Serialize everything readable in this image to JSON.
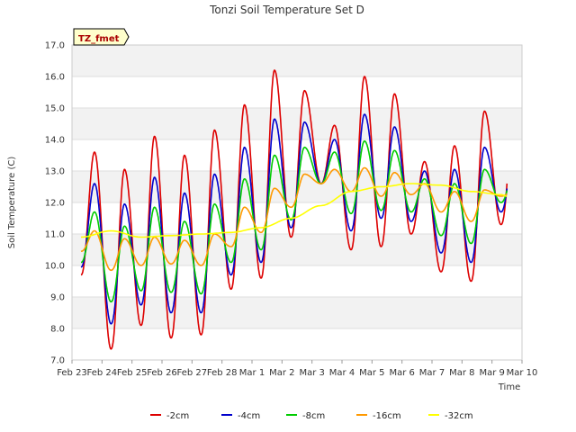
{
  "chart_data": {
    "type": "line",
    "title": "Tonzi Soil Temperature Set D",
    "xlabel": "Time",
    "ylabel": "Soil Temperature (C)",
    "site_label": "TZ_fmet",
    "ylim": [
      7.0,
      17.0
    ],
    "xlim": [
      0,
      15
    ],
    "y_ticks": [
      "7.0",
      "8.0",
      "9.0",
      "10.0",
      "11.0",
      "12.0",
      "13.0",
      "14.0",
      "15.0",
      "16.0",
      "17.0"
    ],
    "x_ticks": [
      "Feb 23",
      "Feb 24",
      "Feb 25",
      "Feb 26",
      "Feb 27",
      "Feb 28",
      "Mar 1",
      "Mar 2",
      "Mar 3",
      "Mar 4",
      "Mar 5",
      "Mar 6",
      "Mar 7",
      "Mar 8",
      "Mar 9",
      "Mar 10"
    ],
    "legend_position": "bottom",
    "grid": true,
    "series": [
      {
        "name": "-2cm",
        "color": "#dd0000",
        "daily_min": [
          9.7,
          7.35,
          8.1,
          7.7,
          7.8,
          9.25,
          9.6,
          10.9,
          12.6,
          10.5,
          10.6,
          11.0,
          9.8,
          9.5,
          11.3
        ],
        "daily_max": [
          13.6,
          13.05,
          14.1,
          13.5,
          14.3,
          15.1,
          16.2,
          15.55,
          14.45,
          16.0,
          15.45,
          13.3,
          13.8,
          14.9,
          14.9
        ]
      },
      {
        "name": "-4cm",
        "color": "#0000cc",
        "daily_min": [
          9.95,
          8.15,
          8.75,
          8.5,
          8.5,
          9.7,
          10.1,
          11.2,
          12.6,
          11.1,
          11.5,
          11.4,
          10.4,
          10.1,
          11.7
        ],
        "daily_max": [
          12.6,
          11.95,
          12.8,
          12.3,
          12.9,
          13.75,
          14.65,
          14.55,
          14.0,
          14.8,
          14.4,
          13.0,
          13.05,
          13.75,
          13.75
        ]
      },
      {
        "name": "-8cm",
        "color": "#00cc00",
        "daily_min": [
          10.1,
          8.85,
          9.2,
          9.15,
          9.1,
          10.1,
          10.5,
          11.45,
          12.6,
          11.65,
          11.75,
          11.7,
          10.95,
          10.7,
          12.0
        ],
        "daily_max": [
          11.7,
          11.25,
          11.85,
          11.4,
          11.95,
          12.75,
          13.5,
          13.75,
          13.6,
          13.95,
          13.65,
          12.75,
          12.6,
          13.05,
          13.05
        ]
      },
      {
        "name": "-16cm",
        "color": "#ff9900",
        "daily_min": [
          10.45,
          9.85,
          10.0,
          10.05,
          10.0,
          10.6,
          11.05,
          11.85,
          12.6,
          12.35,
          12.2,
          12.25,
          11.7,
          11.4,
          12.2
        ],
        "daily_max": [
          11.1,
          10.85,
          10.9,
          10.8,
          11.0,
          11.85,
          12.45,
          12.9,
          13.05,
          13.1,
          12.95,
          12.6,
          12.35,
          12.4,
          12.4
        ]
      },
      {
        "name": "-32cm",
        "color": "#ffff00",
        "points": [
          [
            0.3,
            10.9
          ],
          [
            1.3,
            11.1
          ],
          [
            2.3,
            10.9
          ],
          [
            3.3,
            10.95
          ],
          [
            4.3,
            11.0
          ],
          [
            5.3,
            11.05
          ],
          [
            6.3,
            11.2
          ],
          [
            7.3,
            11.5
          ],
          [
            8.3,
            11.9
          ],
          [
            9.3,
            12.35
          ],
          [
            10.3,
            12.5
          ],
          [
            11.3,
            12.6
          ],
          [
            12.3,
            12.55
          ],
          [
            13.3,
            12.35
          ],
          [
            14.3,
            12.25
          ],
          [
            14.5,
            12.2
          ]
        ]
      }
    ]
  }
}
